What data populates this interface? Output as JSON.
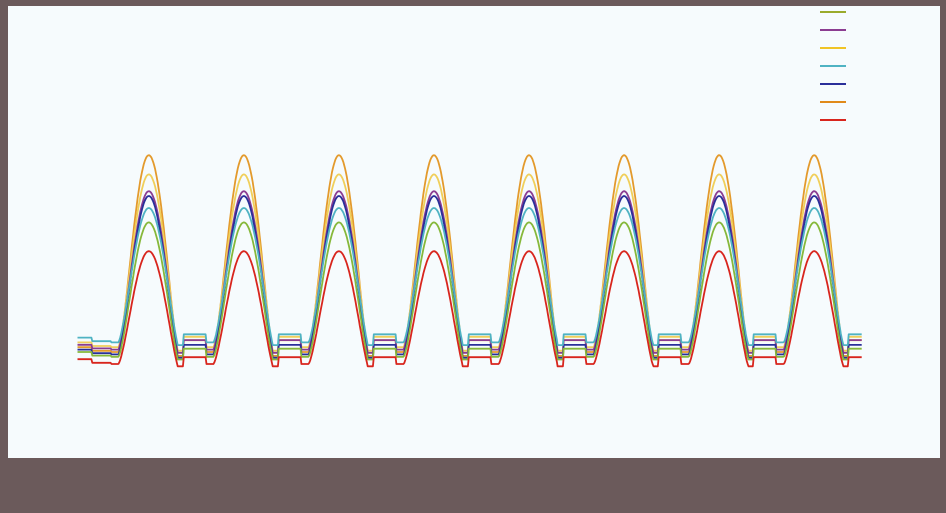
{
  "page": {
    "background": "#6b5a5b",
    "panel_background": "#f6fbfd"
  },
  "header": {
    "line1": "",
    "line2": ""
  },
  "chart_data": {
    "type": "line",
    "title": "",
    "xlabel": "",
    "ylabel": "",
    "grid": false,
    "legend": {
      "position": "top-right",
      "entries": [
        {
          "name": "",
          "color": "#9aab2c"
        },
        {
          "name": "",
          "color": "#8b3c91"
        },
        {
          "name": "",
          "color": "#f0c426"
        },
        {
          "name": "",
          "color": "#4fb3c3"
        },
        {
          "name": "",
          "color": "#2a2f9a"
        },
        {
          "name": "",
          "color": "#e08a1a"
        },
        {
          "name": "",
          "color": "#d8251d"
        }
      ]
    },
    "cycles": 8,
    "xlim": [
      0,
      8.5
    ],
    "ylim": [
      0,
      100
    ],
    "series": [
      {
        "color": "#e39a2c",
        "baseline": 10,
        "peak": 92
      },
      {
        "color": "#f0cf5a",
        "baseline": 12,
        "peak": 84
      },
      {
        "color": "#8b3c91",
        "baseline": 11,
        "peak": 77
      },
      {
        "color": "#2a2f9a",
        "baseline": 9,
        "peak": 75
      },
      {
        "color": "#4fb3c3",
        "baseline": 14,
        "peak": 70
      },
      {
        "color": "#86b83a",
        "baseline": 8,
        "peak": 64
      },
      {
        "color": "#d8251d",
        "baseline": 5,
        "peak": 52
      }
    ]
  }
}
